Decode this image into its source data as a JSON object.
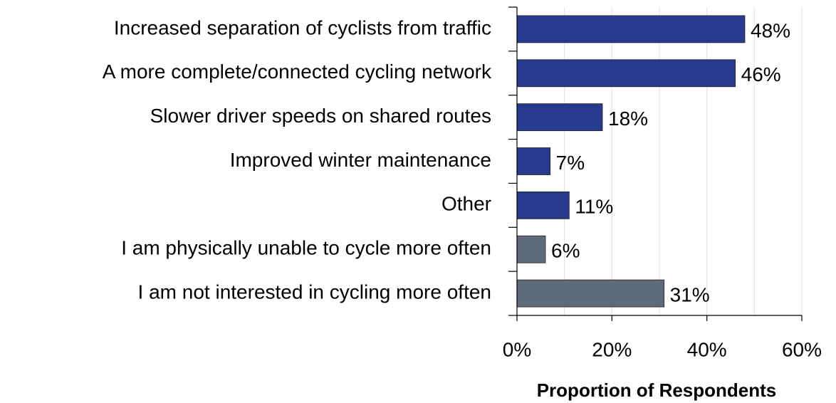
{
  "chart_data": {
    "type": "hbar",
    "categories": [
      "Increased separation of cyclists from traffic",
      "A more complete/connected cycling network",
      "Slower driver speeds on shared routes",
      "Improved winter maintenance",
      "Other",
      "I am physically unable to cycle more often",
      "I am not interested in cycling more often"
    ],
    "values": [
      48,
      46,
      18,
      7,
      11,
      6,
      31
    ],
    "value_labels": [
      "48%",
      "46%",
      "18%",
      "7%",
      "11%",
      "6%",
      "31%"
    ],
    "colors": [
      "#283a8e",
      "#283a8e",
      "#283a8e",
      "#283a8e",
      "#283a8e",
      "#5e6a7a",
      "#5e6a7a"
    ],
    "xlim": [
      0,
      60
    ],
    "xticks": [
      {
        "value": 0,
        "label": "0%"
      },
      {
        "value": 20,
        "label": "20%"
      },
      {
        "value": 40,
        "label": "40%"
      },
      {
        "value": 60,
        "label": "60%"
      }
    ],
    "xgrid": [
      10,
      20,
      30,
      40,
      50,
      60
    ],
    "xlabel": "Proportion of Respondents",
    "grid": true
  }
}
